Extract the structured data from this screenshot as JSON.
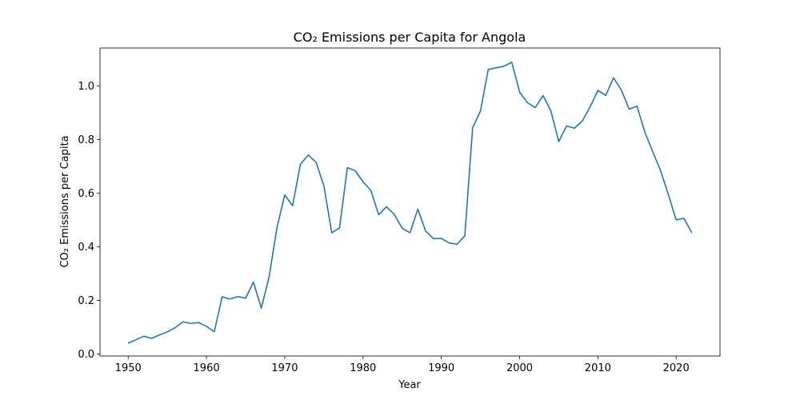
{
  "chart_data": {
    "type": "line",
    "title": "CO₂ Emissions per Capita for Angola",
    "xlabel": "Year",
    "ylabel": "CO₂ Emissions per Capita",
    "xlim": [
      1946.4,
      2025.6
    ],
    "ylim": [
      -0.0076,
      1.141
    ],
    "xticks": [
      1950,
      1960,
      1970,
      1980,
      1990,
      2000,
      2010,
      2020
    ],
    "yticks": [
      0.0,
      0.2,
      0.4,
      0.6,
      0.8,
      1.0
    ],
    "ytick_labels": [
      "0.0",
      "0.2",
      "0.4",
      "0.6",
      "0.8",
      "1.0"
    ],
    "grid": false,
    "colors": {
      "line": "#1f77b4"
    },
    "series": [
      {
        "x": [
          1950,
          1951,
          1952,
          1953,
          1954,
          1955,
          1956,
          1957,
          1958,
          1959,
          1960,
          1961,
          1962,
          1963,
          1964,
          1965,
          1966,
          1967,
          1968,
          1969,
          1970,
          1971,
          1972,
          1973,
          1974,
          1975,
          1976,
          1977,
          1978,
          1979,
          1980,
          1981,
          1982,
          1983,
          1984,
          1985,
          1986,
          1987,
          1988,
          1989,
          1990,
          1991,
          1992,
          1993,
          1994,
          1995,
          1996,
          1997,
          1998,
          1999,
          2000,
          2001,
          2002,
          2003,
          2004,
          2005,
          2006,
          2007,
          2008,
          2009,
          2010,
          2011,
          2012,
          2013,
          2014,
          2015,
          2016,
          2017,
          2018,
          2019,
          2020,
          2021,
          2022
        ],
        "values": [
          0.04,
          0.053,
          0.066,
          0.058,
          0.071,
          0.082,
          0.098,
          0.12,
          0.114,
          0.117,
          0.103,
          0.083,
          0.213,
          0.205,
          0.214,
          0.208,
          0.268,
          0.171,
          0.287,
          0.47,
          0.593,
          0.553,
          0.707,
          0.742,
          0.715,
          0.627,
          0.452,
          0.47,
          0.695,
          0.683,
          0.642,
          0.61,
          0.519,
          0.549,
          0.52,
          0.469,
          0.452,
          0.54,
          0.458,
          0.43,
          0.431,
          0.414,
          0.409,
          0.44,
          0.843,
          0.906,
          1.061,
          1.067,
          1.073,
          1.088,
          0.977,
          0.937,
          0.919,
          0.964,
          0.906,
          0.792,
          0.85,
          0.842,
          0.868,
          0.921,
          0.983,
          0.964,
          1.03,
          0.984,
          0.913,
          0.924,
          0.827,
          0.755,
          0.684,
          0.595,
          0.5,
          0.506,
          0.452
        ]
      }
    ]
  }
}
